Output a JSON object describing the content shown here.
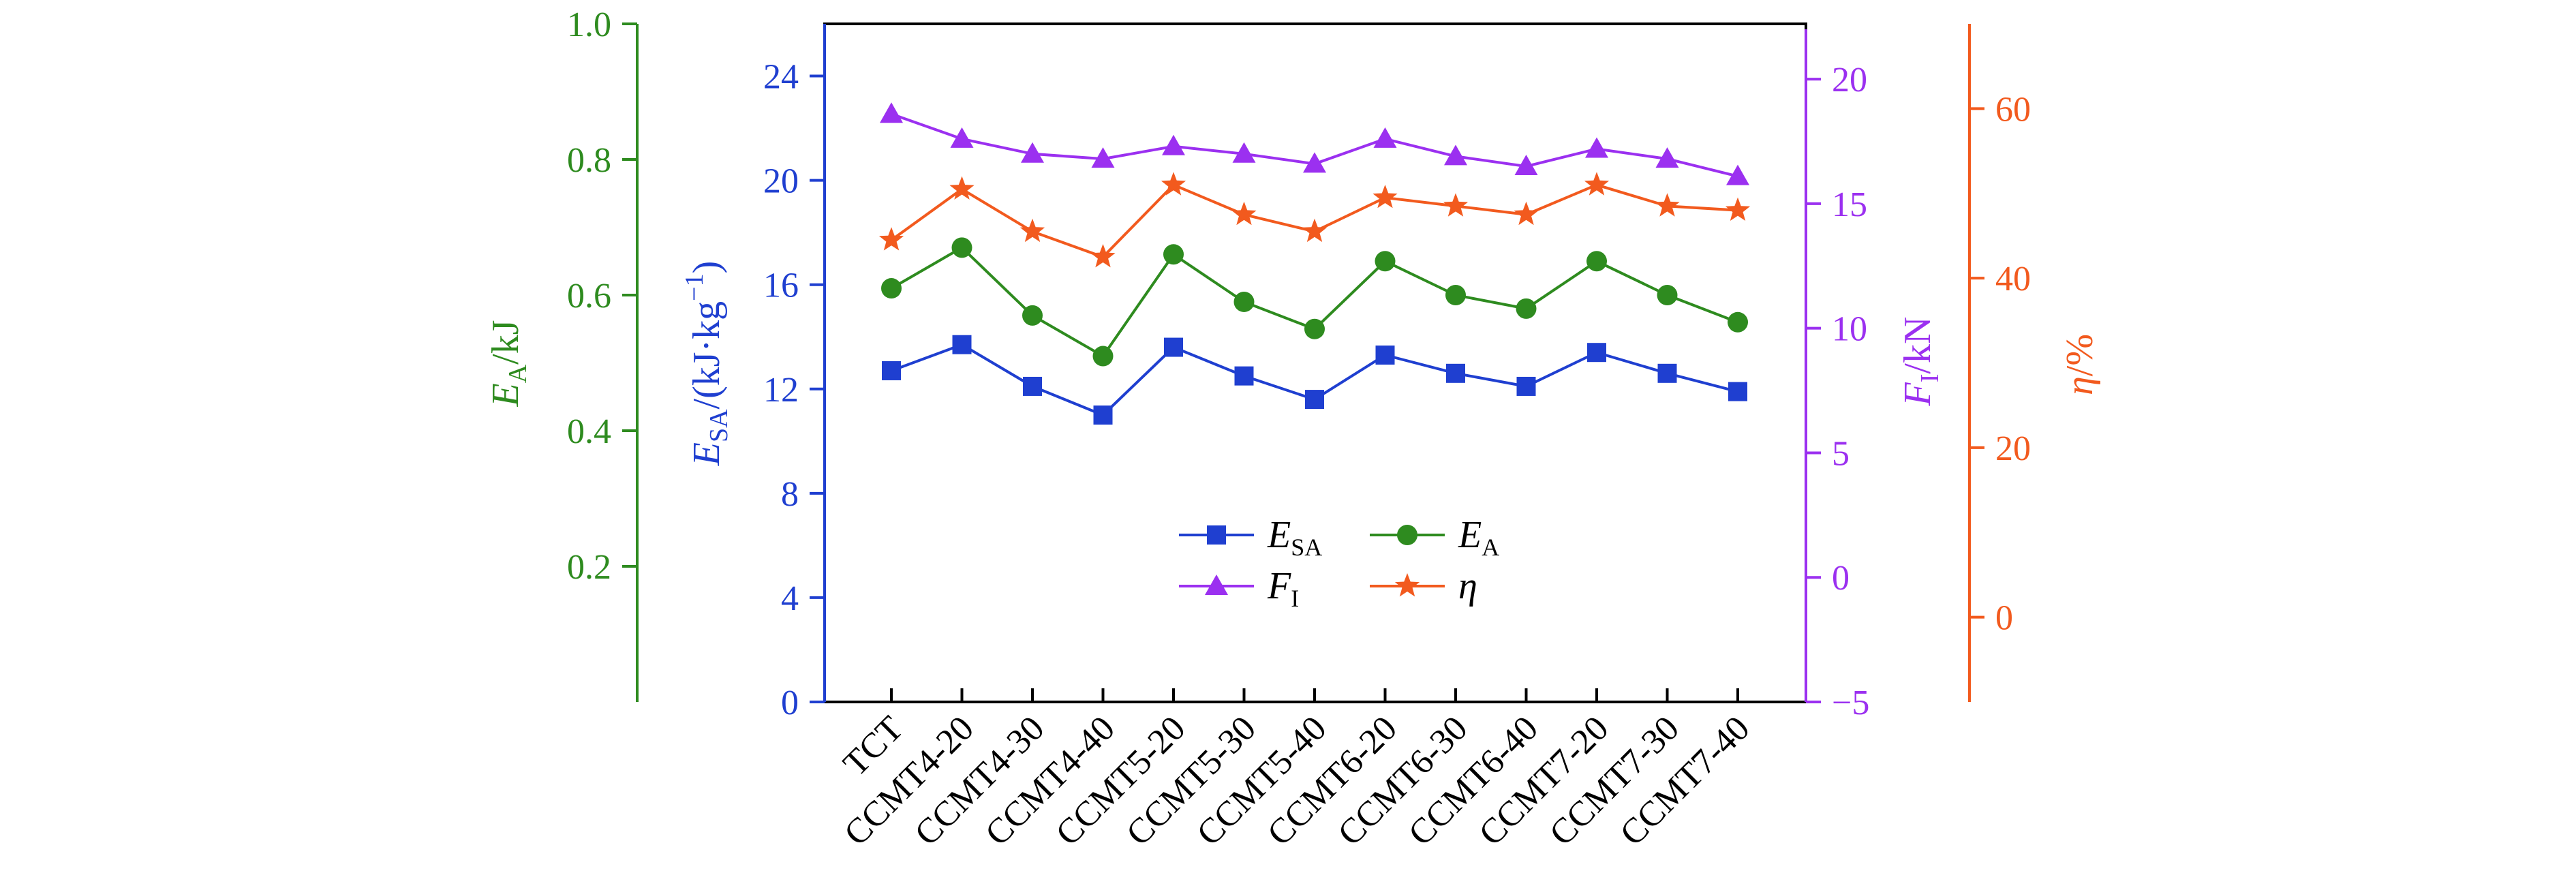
{
  "chart_data": {
    "type": "line",
    "categories": [
      "TCT",
      "CCMT4-20",
      "CCMT4-30",
      "CCMT4-40",
      "CCMT5-20",
      "CCMT5-30",
      "CCMT5-40",
      "CCMT6-20",
      "CCMT6-30",
      "CCMT6-40",
      "CCMT7-20",
      "CCMT7-30",
      "CCMT7-40"
    ],
    "axes": {
      "EA": {
        "label_main": "E",
        "label_sub": "A",
        "label_rest": "/kJ",
        "range": [
          0.0,
          1.0
        ],
        "ticks": [
          0.2,
          0.4,
          0.6,
          0.8,
          1.0
        ],
        "tick_labels": [
          "0.2",
          "0.4",
          "0.6",
          "0.8",
          "1.0"
        ],
        "color": "#2e8b1f"
      },
      "ESA": {
        "label_main": "E",
        "label_sub": "SA",
        "label_rest": "/(kJ·kg",
        "label_sup": "−1",
        "label_close": ")",
        "range": [
          0,
          26
        ],
        "ticks": [
          0,
          4,
          8,
          12,
          16,
          20,
          24
        ],
        "tick_labels": [
          "0",
          "4",
          "8",
          "12",
          "16",
          "20",
          "24"
        ],
        "color": "#1f3fd0"
      },
      "FI": {
        "label_main": "F",
        "label_sub": "I",
        "label_rest": "/kN",
        "range": [
          -5,
          22
        ],
        "ticks": [
          -5,
          0,
          5,
          10,
          15,
          20
        ],
        "tick_labels": [
          "−5",
          "0",
          "5",
          "10",
          "15",
          "20"
        ],
        "color": "#9b30f0"
      },
      "eta": {
        "label_main": "η",
        "label_rest": "/%",
        "range": [
          -10,
          70
        ],
        "ticks": [
          0,
          20,
          40,
          60
        ],
        "tick_labels": [
          "0",
          "20",
          "40",
          "60"
        ],
        "color": "#f25a1e"
      }
    },
    "series": [
      {
        "key": "ESA",
        "name_main": "E",
        "name_sub": "SA",
        "axis": "ESA",
        "color": "#1f3fd0",
        "marker": "square",
        "values": [
          12.7,
          13.7,
          12.1,
          11.0,
          13.6,
          12.5,
          11.6,
          13.3,
          12.6,
          12.1,
          13.4,
          12.6,
          11.9
        ]
      },
      {
        "key": "EA",
        "name_main": "E",
        "name_sub": "A",
        "axis": "EA",
        "color": "#2e8b1f",
        "marker": "circle",
        "values": [
          0.61,
          0.67,
          0.57,
          0.51,
          0.66,
          0.59,
          0.55,
          0.65,
          0.6,
          0.58,
          0.65,
          0.6,
          0.56
        ]
      },
      {
        "key": "FI",
        "name_main": "F",
        "name_sub": "I",
        "axis": "FI",
        "color": "#9b30f0",
        "marker": "triangle",
        "values": [
          18.6,
          17.6,
          17.0,
          16.8,
          17.3,
          17.0,
          16.6,
          17.6,
          16.9,
          16.5,
          17.2,
          16.8,
          16.1
        ]
      },
      {
        "key": "eta",
        "name_main": "η",
        "name_sub": "",
        "axis": "eta",
        "color": "#f25a1e",
        "marker": "star",
        "values": [
          44.5,
          50.5,
          45.5,
          42.5,
          51.0,
          47.5,
          45.5,
          49.5,
          48.5,
          47.5,
          51.0,
          48.5,
          48.0
        ]
      }
    ]
  }
}
